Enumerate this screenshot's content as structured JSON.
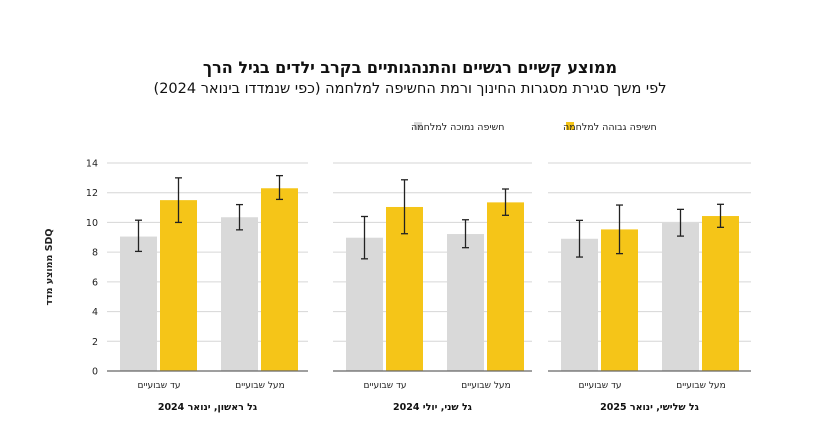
{
  "chart_data": {
    "type": "bar",
    "title": "ממוצע קשיים רגשיים והתנהגותיים בקרב ילדים בגיל הרך",
    "subtitle": "לפי משך סגירת מסגרות החינוך ורמת החשיפה למלחמה (כפי שנמדדו בינואר 2024)",
    "ylabel": "ממוצע מדד SDQ",
    "ylim": [
      0,
      14
    ],
    "yticks": [
      0,
      2,
      4,
      6,
      8,
      10,
      12,
      14
    ],
    "grid": true,
    "legend_placement": "top-center",
    "colors": {
      "low": "#d9d9d9",
      "high": "#f5c518",
      "error": "#222222",
      "grid": "#d6d6d6",
      "axis": "#666666"
    },
    "series": [
      {
        "name": "חשיפה נמוכה למלחמה",
        "key": "low"
      },
      {
        "name": "חשיפה גבוהה למלחמה",
        "key": "high"
      }
    ],
    "panels": [
      {
        "label": "גל ראשון, ינואר 2024",
        "categories": [
          "עד שבועיים",
          "מעל שבועיים"
        ],
        "low": {
          "values": [
            9.05,
            10.35
          ],
          "err_low": [
            8.05,
            9.5
          ],
          "err_high": [
            10.15,
            11.2
          ]
        },
        "high": {
          "values": [
            11.5,
            12.3
          ],
          "err_low": [
            10.0,
            11.55
          ],
          "err_high": [
            13.0,
            13.15
          ]
        }
      },
      {
        "label": "גל שני, יולי 2024",
        "categories": [
          "עד שבועיים",
          "מעל שבועיים"
        ],
        "low": {
          "values": [
            8.97,
            9.22
          ],
          "err_low": [
            7.55,
            8.3
          ],
          "err_high": [
            10.4,
            10.18
          ]
        },
        "high": {
          "values": [
            11.04,
            11.35
          ],
          "err_low": [
            9.24,
            10.48
          ],
          "err_high": [
            12.87,
            12.25
          ]
        }
      },
      {
        "label": "גל שלישי, ינואר 2025",
        "categories": [
          "עד שבועיים",
          "מעל שבועיים"
        ],
        "low": {
          "values": [
            8.9,
            9.96
          ],
          "err_low": [
            7.67,
            9.08
          ],
          "err_high": [
            10.14,
            10.88
          ]
        },
        "high": {
          "values": [
            9.53,
            10.43
          ],
          "err_low": [
            7.9,
            9.67
          ],
          "err_high": [
            11.17,
            11.22
          ]
        }
      }
    ]
  }
}
